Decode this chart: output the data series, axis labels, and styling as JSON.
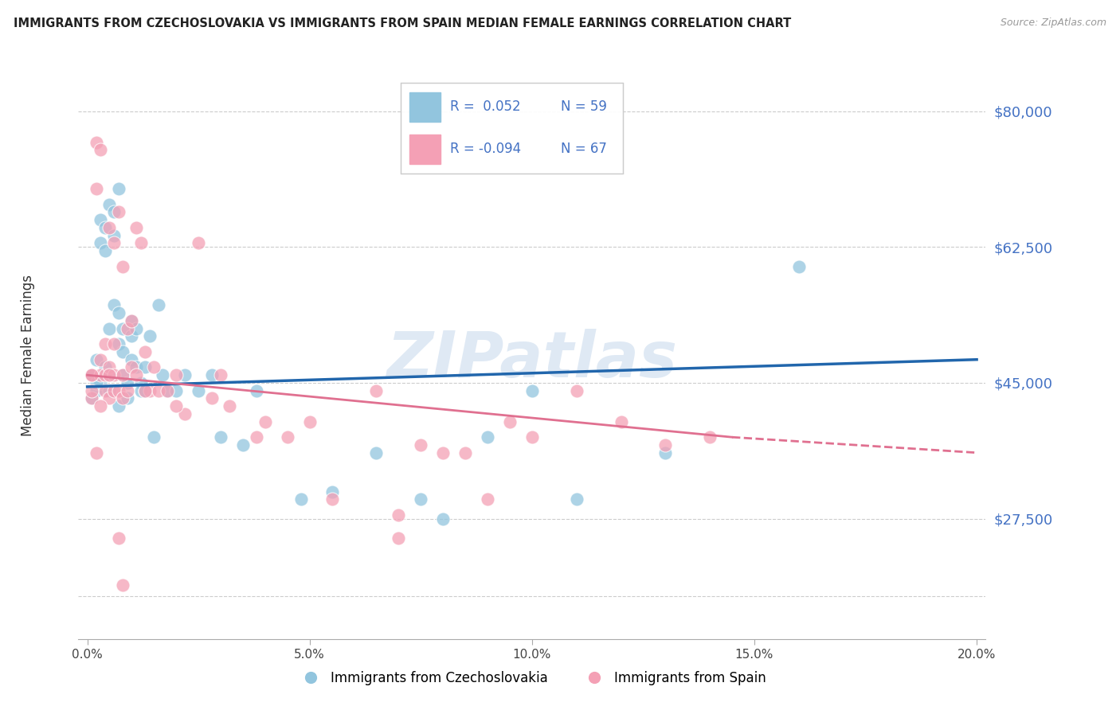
{
  "title": "IMMIGRANTS FROM CZECHOSLOVAKIA VS IMMIGRANTS FROM SPAIN MEDIAN FEMALE EARNINGS CORRELATION CHART",
  "source": "Source: ZipAtlas.com",
  "ylabel": "Median Female Earnings",
  "xlabel_ticks": [
    "0.0%",
    "5.0%",
    "10.0%",
    "15.0%",
    "20.0%"
  ],
  "xlabel_vals": [
    0.0,
    0.05,
    0.1,
    0.15,
    0.2
  ],
  "yticks": [
    17500,
    27500,
    45000,
    62500,
    80000
  ],
  "ytick_labels": [
    "",
    "$27,500",
    "$45,000",
    "$62,500",
    "$80,000"
  ],
  "xlim": [
    -0.002,
    0.202
  ],
  "ylim": [
    12000,
    87000
  ],
  "legend_labels": [
    "Immigrants from Czechoslovakia",
    "Immigrants from Spain"
  ],
  "color_blue": "#92c5de",
  "color_pink": "#f4a0b5",
  "color_blue_line": "#2166ac",
  "color_pink_line": "#e07090",
  "color_axis_labels": "#4472c4",
  "watermark": "ZIPatlas",
  "blue_scatter_x": [
    0.001,
    0.001,
    0.002,
    0.002,
    0.003,
    0.003,
    0.003,
    0.004,
    0.004,
    0.004,
    0.005,
    0.005,
    0.005,
    0.005,
    0.006,
    0.006,
    0.006,
    0.007,
    0.007,
    0.007,
    0.007,
    0.008,
    0.008,
    0.008,
    0.009,
    0.009,
    0.01,
    0.01,
    0.01,
    0.011,
    0.011,
    0.012,
    0.012,
    0.013,
    0.013,
    0.014,
    0.015,
    0.016,
    0.017,
    0.018,
    0.02,
    0.022,
    0.025,
    0.028,
    0.03,
    0.035,
    0.038,
    0.048,
    0.055,
    0.065,
    0.075,
    0.08,
    0.09,
    0.1,
    0.11,
    0.13,
    0.16,
    0.001,
    0.002
  ],
  "blue_scatter_y": [
    46000,
    43000,
    48000,
    44000,
    66000,
    63000,
    45000,
    65000,
    62000,
    47000,
    68000,
    52000,
    46000,
    44000,
    67000,
    64000,
    55000,
    70000,
    54000,
    50000,
    42000,
    52000,
    49000,
    46000,
    45000,
    43000,
    53000,
    51000,
    48000,
    52000,
    47000,
    45000,
    44000,
    47000,
    44000,
    51000,
    38000,
    55000,
    46000,
    44000,
    44000,
    46000,
    44000,
    46000,
    38000,
    37000,
    44000,
    30000,
    31000,
    36000,
    30000,
    27500,
    38000,
    44000,
    30000,
    36000,
    60000,
    46000,
    45000
  ],
  "pink_scatter_x": [
    0.001,
    0.001,
    0.002,
    0.002,
    0.003,
    0.003,
    0.003,
    0.004,
    0.004,
    0.004,
    0.005,
    0.005,
    0.005,
    0.006,
    0.006,
    0.006,
    0.007,
    0.007,
    0.008,
    0.008,
    0.008,
    0.009,
    0.009,
    0.01,
    0.01,
    0.011,
    0.011,
    0.012,
    0.013,
    0.014,
    0.015,
    0.016,
    0.018,
    0.02,
    0.022,
    0.025,
    0.028,
    0.03,
    0.032,
    0.038,
    0.04,
    0.045,
    0.05,
    0.055,
    0.065,
    0.07,
    0.075,
    0.08,
    0.085,
    0.09,
    0.095,
    0.1,
    0.11,
    0.12,
    0.13,
    0.14,
    0.002,
    0.003,
    0.005,
    0.006,
    0.007,
    0.008,
    0.013,
    0.02,
    0.001,
    0.001,
    0.07
  ],
  "pink_scatter_y": [
    46000,
    43000,
    76000,
    70000,
    75000,
    48000,
    46000,
    50000,
    46000,
    44000,
    65000,
    47000,
    43000,
    63000,
    46000,
    44000,
    67000,
    44000,
    60000,
    46000,
    43000,
    44000,
    52000,
    53000,
    47000,
    65000,
    46000,
    63000,
    49000,
    44000,
    47000,
    44000,
    44000,
    46000,
    41000,
    63000,
    43000,
    46000,
    42000,
    38000,
    40000,
    38000,
    40000,
    30000,
    44000,
    28000,
    37000,
    36000,
    36000,
    30000,
    40000,
    38000,
    44000,
    40000,
    37000,
    38000,
    36000,
    42000,
    46000,
    50000,
    25000,
    19000,
    44000,
    42000,
    46000,
    44000,
    25000
  ]
}
